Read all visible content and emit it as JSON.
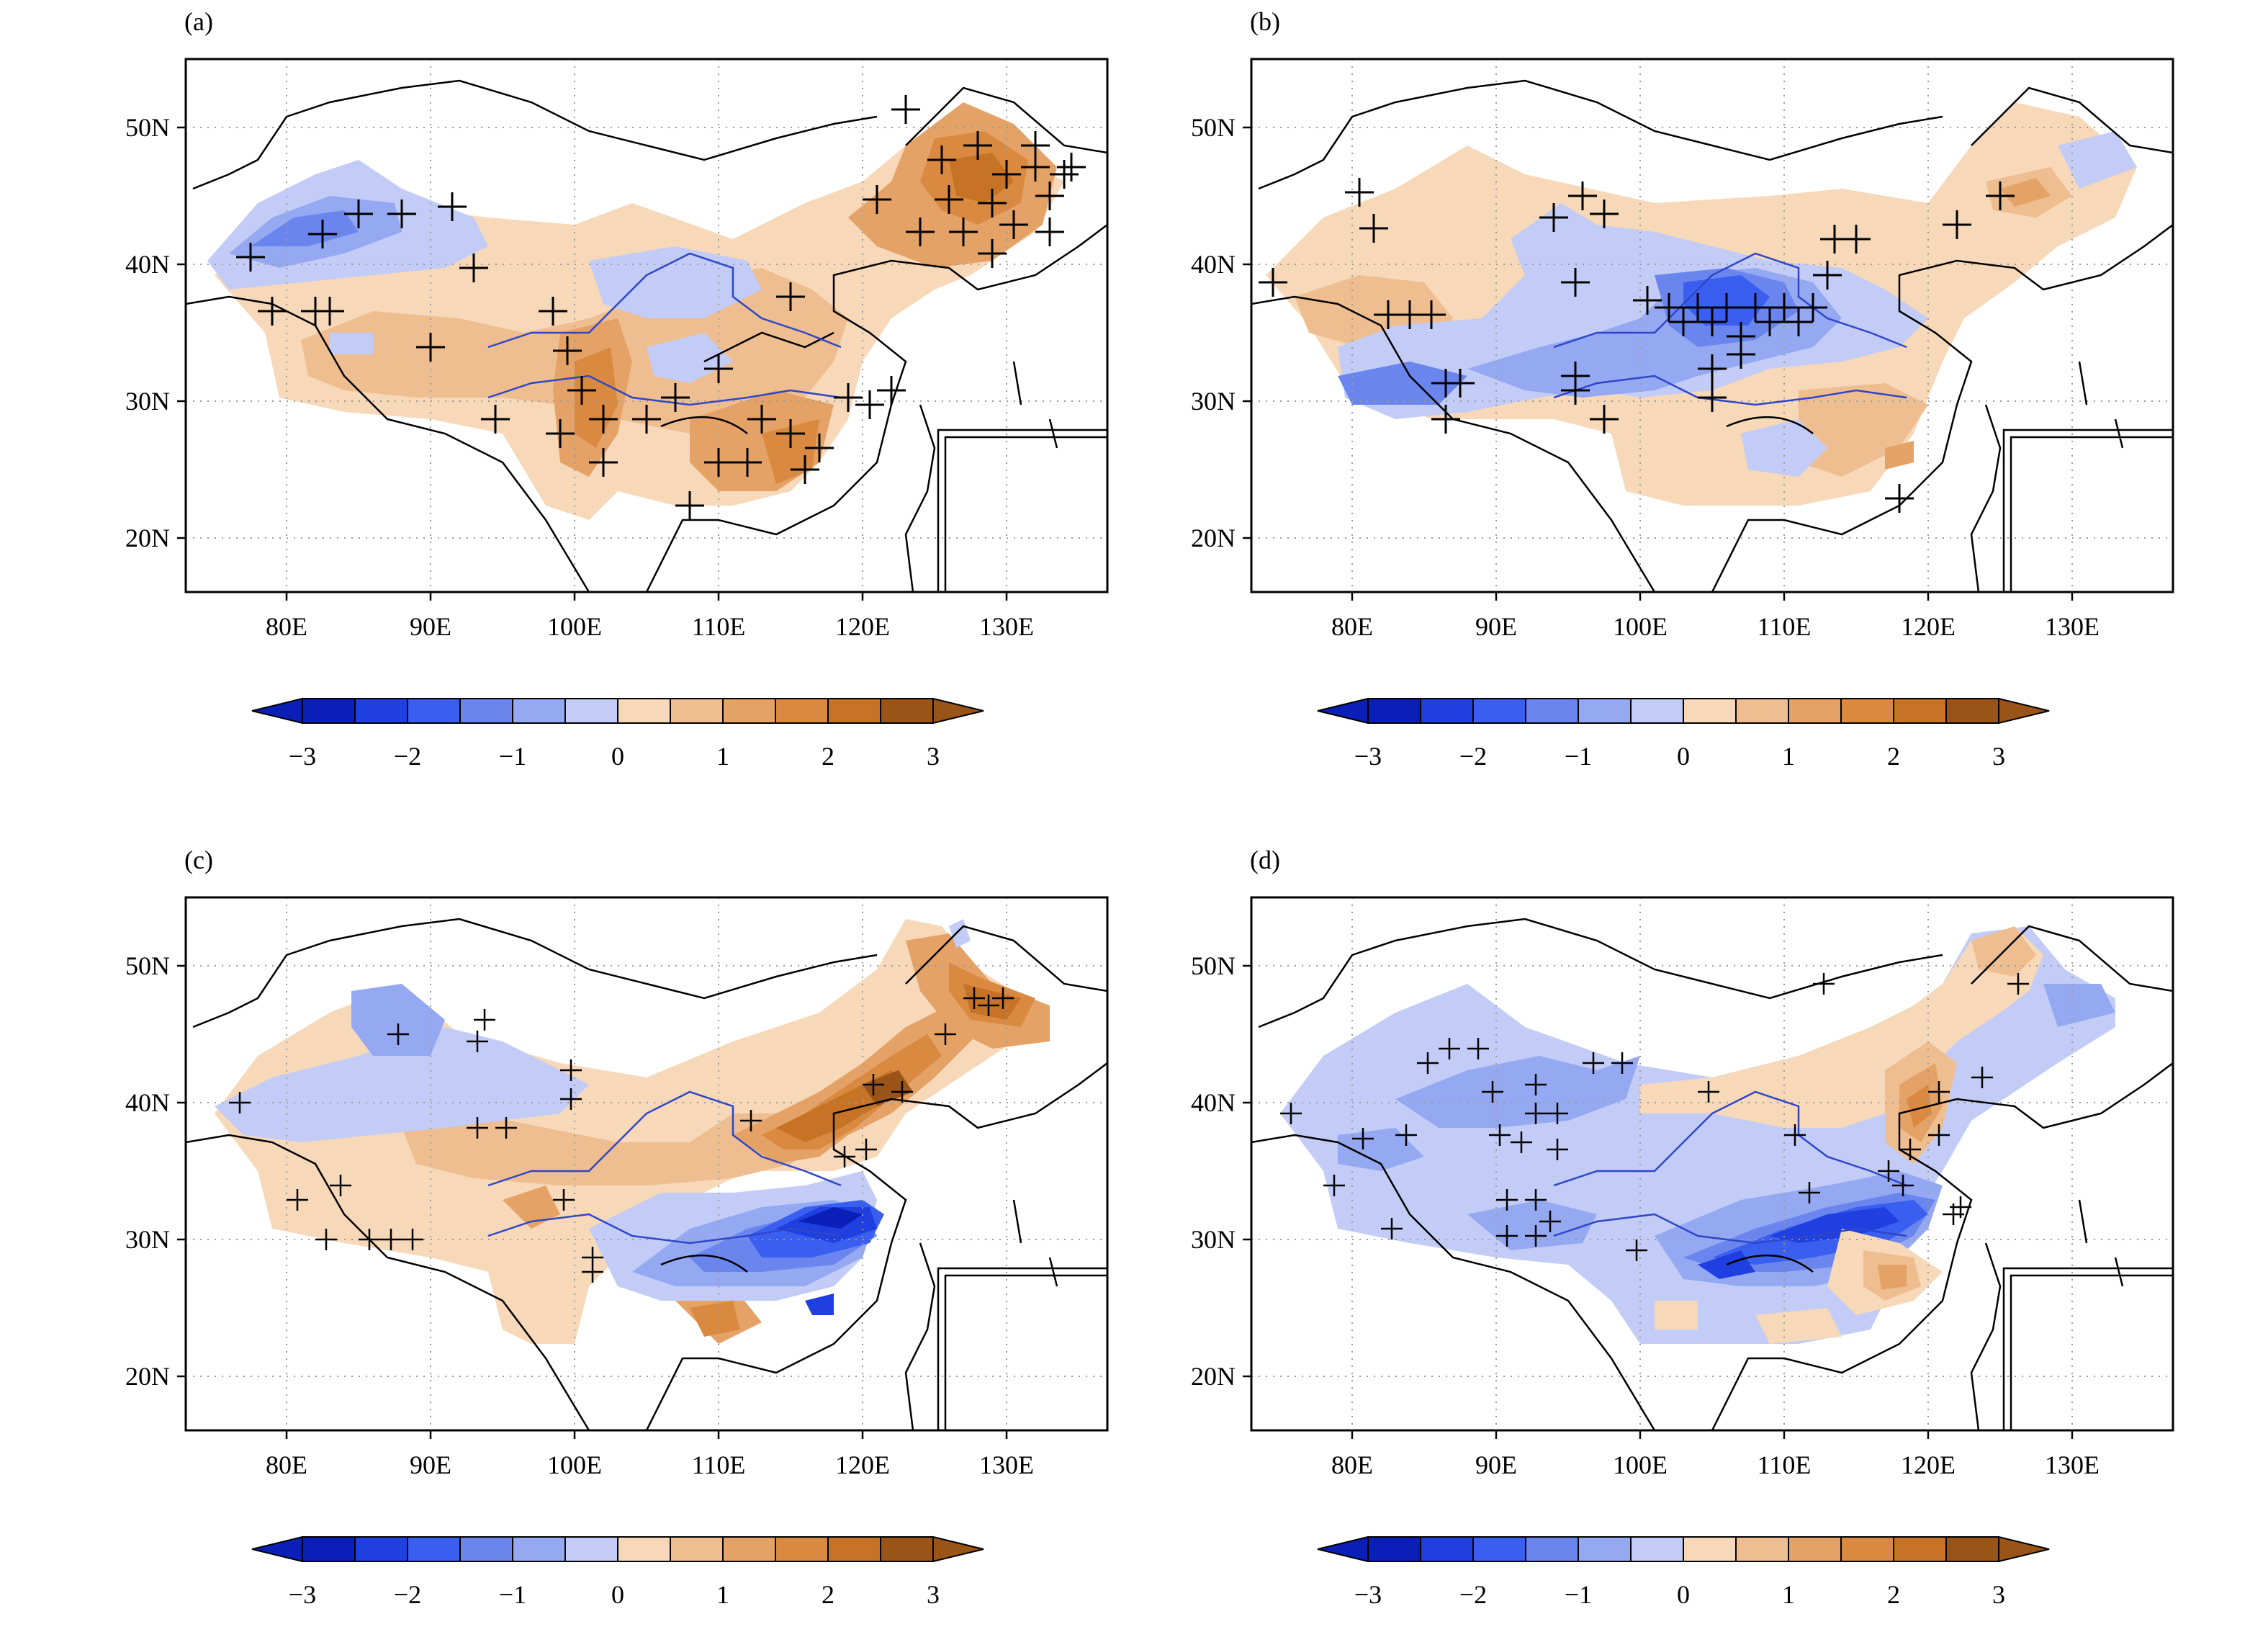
{
  "figure": {
    "panels": [
      {
        "id": "a",
        "label": "(a)"
      },
      {
        "id": "b",
        "label": "(b)"
      },
      {
        "id": "c",
        "label": "(c)"
      },
      {
        "id": "d",
        "label": "(d)"
      }
    ],
    "lon_ticks": [
      "80E",
      "90E",
      "100E",
      "110E",
      "120E",
      "130E"
    ],
    "lat_ticks": [
      "50N",
      "40N",
      "30N",
      "20N"
    ],
    "colorbar": {
      "labels": [
        "−3",
        "−2",
        "−1",
        "0",
        "1",
        "2",
        "3"
      ],
      "colors": [
        "#0a1fb8",
        "#1f3fe0",
        "#3a5ff0",
        "#6a86ee",
        "#94a9f2",
        "#c2ccf6",
        "#f7d8b8",
        "#efbe90",
        "#e5a266",
        "#d98a40",
        "#c77326",
        "#9a5418"
      ],
      "end_low": "#0a1fb8",
      "end_high": "#9a5418"
    },
    "colors": {
      "coast": "#000000",
      "river": "#2f46c8",
      "grid": "#9a9a9a",
      "land_neutral": "#ffffff"
    }
  }
}
